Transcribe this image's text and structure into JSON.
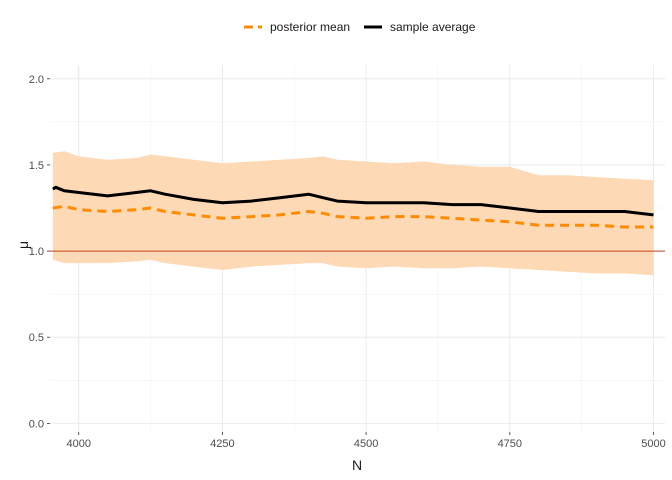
{
  "chart_data": {
    "type": "line",
    "title": "",
    "xlabel": "N",
    "ylabel": "μ",
    "xlim": [
      3950,
      5020
    ],
    "ylim": [
      -0.05,
      2.08
    ],
    "x_ticks": [
      4000,
      4250,
      4500,
      4750,
      5000
    ],
    "y_ticks": [
      0.0,
      0.5,
      1.0,
      1.5,
      2.0
    ],
    "x_tick_labels": [
      "4000",
      "4250",
      "4500",
      "4750",
      "5000"
    ],
    "y_tick_labels": [
      "0.0",
      "0.5",
      "1.0",
      "1.5",
      "2.0"
    ],
    "grid": true,
    "legend_position": "top",
    "reference_line": {
      "y": 1.0,
      "color": "#c0451f"
    },
    "band": {
      "color": "#fdd9b5",
      "x": [
        3955,
        3975,
        4000,
        4050,
        4100,
        4125,
        4150,
        4200,
        4250,
        4300,
        4350,
        4400,
        4425,
        4450,
        4500,
        4550,
        4600,
        4650,
        4700,
        4750,
        4800,
        4850,
        4900,
        4950,
        5000
      ],
      "lower": [
        0.95,
        0.93,
        0.93,
        0.93,
        0.94,
        0.95,
        0.93,
        0.91,
        0.89,
        0.91,
        0.92,
        0.93,
        0.93,
        0.91,
        0.9,
        0.91,
        0.9,
        0.9,
        0.91,
        0.9,
        0.89,
        0.88,
        0.87,
        0.87,
        0.86
      ],
      "upper": [
        1.57,
        1.58,
        1.55,
        1.53,
        1.54,
        1.56,
        1.55,
        1.53,
        1.51,
        1.52,
        1.53,
        1.54,
        1.55,
        1.53,
        1.52,
        1.51,
        1.52,
        1.5,
        1.49,
        1.49,
        1.44,
        1.44,
        1.43,
        1.42,
        1.41
      ]
    },
    "series": [
      {
        "name": "posterior mean",
        "color": "#ff8c00",
        "dashed": true,
        "x": [
          3955,
          3975,
          4000,
          4050,
          4100,
          4125,
          4150,
          4200,
          4250,
          4300,
          4350,
          4400,
          4425,
          4450,
          4500,
          4550,
          4600,
          4650,
          4700,
          4750,
          4800,
          4850,
          4900,
          4950,
          5000
        ],
        "y": [
          1.25,
          1.26,
          1.24,
          1.23,
          1.24,
          1.25,
          1.23,
          1.21,
          1.19,
          1.2,
          1.21,
          1.23,
          1.22,
          1.2,
          1.19,
          1.2,
          1.2,
          1.19,
          1.18,
          1.17,
          1.15,
          1.15,
          1.15,
          1.14,
          1.14
        ]
      },
      {
        "name": "sample average",
        "color": "#000000",
        "dashed": false,
        "x": [
          3955,
          3960,
          3975,
          4000,
          4050,
          4100,
          4125,
          4150,
          4200,
          4250,
          4300,
          4350,
          4400,
          4425,
          4450,
          4500,
          4550,
          4600,
          4650,
          4700,
          4750,
          4800,
          4850,
          4900,
          4950,
          5000
        ],
        "y": [
          1.36,
          1.37,
          1.35,
          1.34,
          1.32,
          1.34,
          1.35,
          1.33,
          1.3,
          1.28,
          1.29,
          1.31,
          1.33,
          1.31,
          1.29,
          1.28,
          1.28,
          1.28,
          1.27,
          1.27,
          1.25,
          1.23,
          1.23,
          1.23,
          1.23,
          1.21
        ]
      }
    ]
  }
}
